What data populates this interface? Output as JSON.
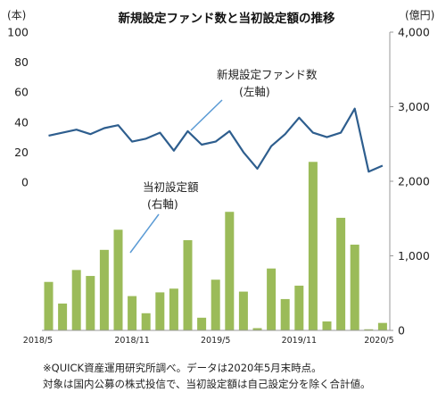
{
  "chart_data": {
    "type": "bar+line",
    "title": "新規設定ファンド数と当初設定額の推移",
    "left_axis": {
      "unit": "(本)",
      "min": 0,
      "max": 100,
      "ticks": [
        0,
        20,
        40,
        60,
        80,
        100
      ]
    },
    "right_axis": {
      "unit": "(億円)",
      "min": 0,
      "max": 4000,
      "ticks": [
        0,
        1000,
        2000,
        3000,
        4000
      ],
      "tick_labels": [
        "0",
        "1,000",
        "2,000",
        "3,000",
        "4,000"
      ]
    },
    "x_tick_labels": [
      "2018/5",
      "2018/11",
      "2019/5",
      "2019/11",
      "2020/5"
    ],
    "categories": [
      "2018/5",
      "2018/6",
      "2018/7",
      "2018/8",
      "2018/9",
      "2018/10",
      "2018/11",
      "2018/12",
      "2019/1",
      "2019/2",
      "2019/3",
      "2019/4",
      "2019/5",
      "2019/6",
      "2019/7",
      "2019/8",
      "2019/9",
      "2019/10",
      "2019/11",
      "2019/12",
      "2020/1",
      "2020/2",
      "2020/3",
      "2020/4",
      "2020/5"
    ],
    "series": [
      {
        "name": "新規設定ファンド数",
        "type": "line",
        "axis": "left",
        "color": "#2e5e8e",
        "values": [
          31,
          33,
          35,
          32,
          36,
          38,
          27,
          29,
          33,
          21,
          34,
          25,
          27,
          34,
          20,
          9,
          24,
          32,
          43,
          33,
          30,
          33,
          49,
          7,
          11
        ]
      },
      {
        "name": "当初設定額",
        "type": "bar",
        "axis": "right",
        "color": "#9bbb59",
        "values": [
          650,
          360,
          810,
          730,
          1080,
          1350,
          460,
          230,
          510,
          560,
          1210,
          170,
          680,
          1590,
          520,
          30,
          830,
          420,
          600,
          2260,
          120,
          1510,
          1150,
          15,
          100
        ]
      }
    ],
    "annotations": [
      {
        "target": "新規設定ファンド数",
        "text": "新規設定ファンド数",
        "axis_note": "(左軸)"
      },
      {
        "target": "当初設定額",
        "text": "当初設定額",
        "axis_note": "(右軸)"
      }
    ]
  },
  "footnotes": [
    "※QUICK資産運用研究所調べ。データは2020年5月末時点。",
    "対象は国内公募の株式投信で、当初設定額は自己設定分を除く合計値。"
  ]
}
